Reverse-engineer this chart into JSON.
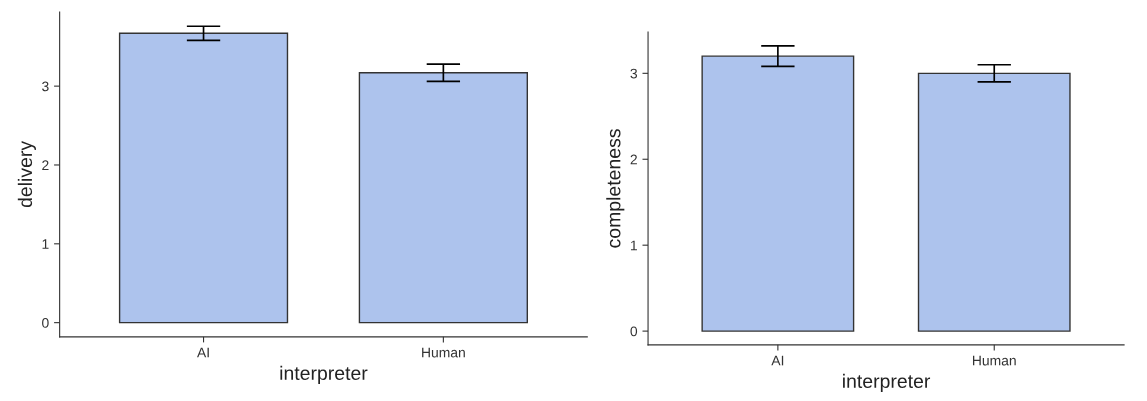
{
  "chart_data": [
    {
      "type": "bar",
      "xlabel": "interpreter",
      "ylabel": "delivery",
      "categories": [
        "AI",
        "Human"
      ],
      "values": [
        3.67,
        3.17
      ],
      "errors": [
        [
          3.58,
          3.76
        ],
        [
          3.06,
          3.28
        ]
      ],
      "color": "#adc3ed",
      "ylim": [
        -0.18,
        3.94
      ],
      "yticks": [
        0,
        1,
        2,
        3
      ],
      "grid": false,
      "legend": false
    },
    {
      "type": "bar",
      "xlabel": "interpreter",
      "ylabel": "completeness",
      "categories": [
        "AI",
        "Human"
      ],
      "values": [
        3.2,
        3.0
      ],
      "errors": [
        [
          3.08,
          3.32
        ],
        [
          2.9,
          3.1
        ]
      ],
      "color": "#adc3ed",
      "ylim": [
        -0.16,
        3.48
      ],
      "yticks": [
        0,
        1,
        2,
        3
      ],
      "grid": false,
      "legend": false
    }
  ]
}
